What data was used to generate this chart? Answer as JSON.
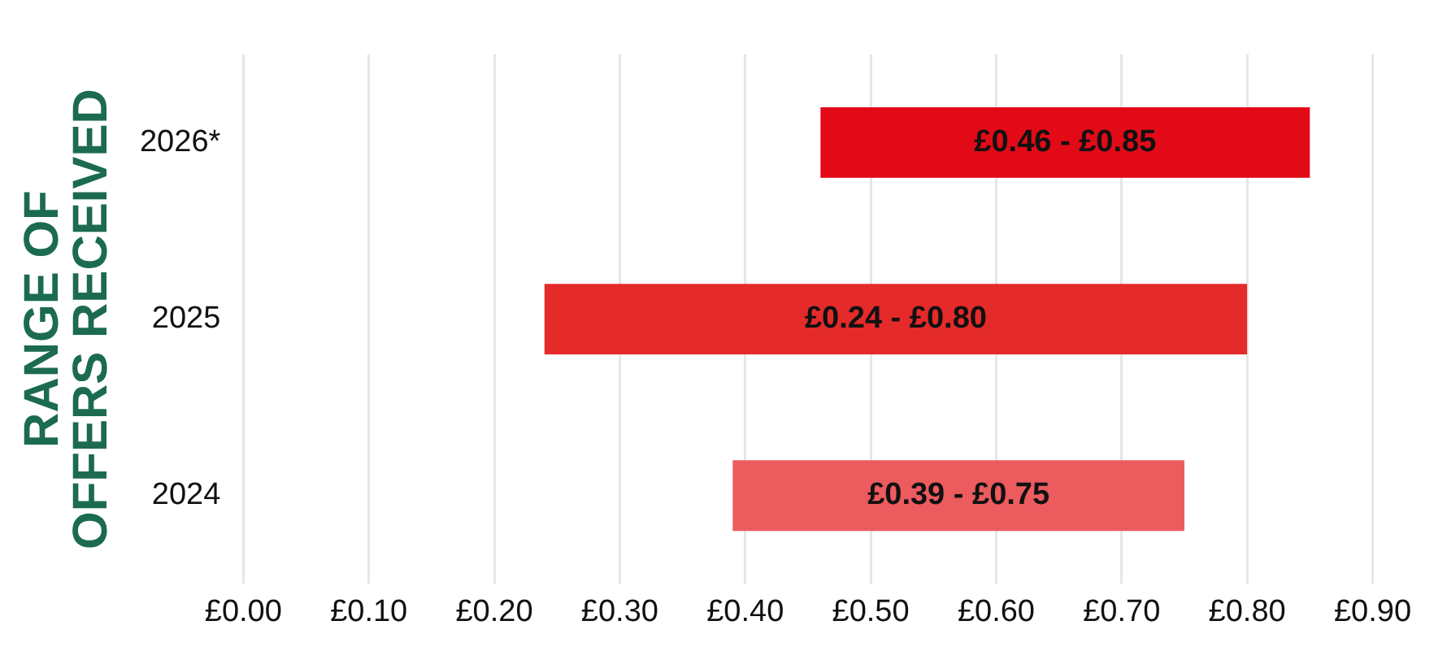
{
  "chart_data": {
    "type": "bar",
    "orientation": "horizontal",
    "ylabel": "RANGE OF OFFERS RECEIVED",
    "categories": [
      "2026*",
      "2025",
      "2024"
    ],
    "base": [
      0.46,
      0.24,
      0.39
    ],
    "values": [
      0.39,
      0.56,
      0.36
    ],
    "colors": [
      "#e20a17",
      "#e52a2a",
      "#ec5b5e"
    ],
    "annotations": [
      "£0.46 - £0.85",
      "£0.24 - £0.80",
      "£0.39 - £0.75"
    ],
    "xlim": [
      0,
      0.9
    ],
    "xticks": [
      {
        "value": 0,
        "label": "£0.00"
      },
      {
        "value": 0.1,
        "label": "£0.10"
      },
      {
        "value": 0.2,
        "label": "£0.20"
      },
      {
        "value": 0.3,
        "label": "£0.30"
      },
      {
        "value": 0.4,
        "label": "£0.40"
      },
      {
        "value": 0.5,
        "label": "£0.50"
      },
      {
        "value": 0.6,
        "label": "£0.60"
      },
      {
        "value": 0.7,
        "label": "£0.70"
      },
      {
        "value": 0.8,
        "label": "£0.80"
      },
      {
        "value": 0.9,
        "label": "£0.90"
      }
    ],
    "grid": "x",
    "legend": false
  }
}
